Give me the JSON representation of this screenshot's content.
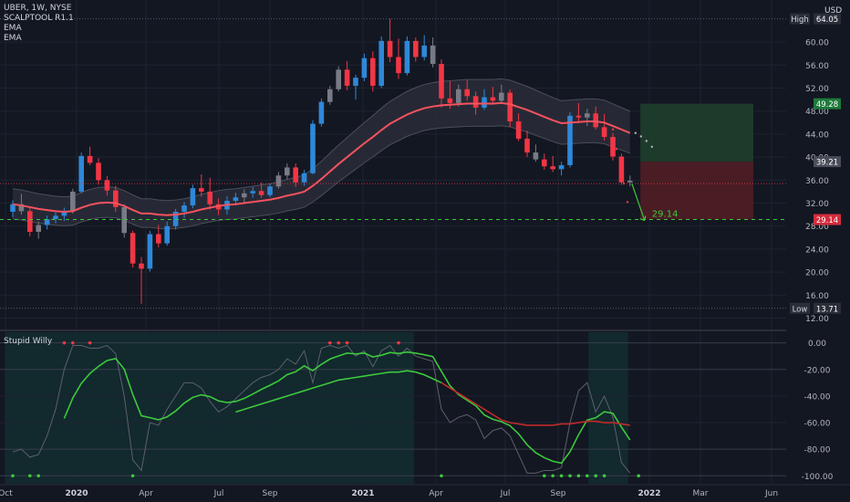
{
  "legend": {
    "symbol": "UBER, 1W, NYSE",
    "line2": "SCALPTOOL R1.1",
    "line3": "EMA",
    "line4": "EMA"
  },
  "currency": "USD",
  "indicator_title": "Stupid Willy",
  "colors": {
    "background": "#131722",
    "up": "#2f88d8",
    "down": "#f23645",
    "neutral": "#787b86",
    "ema": "#f6525f",
    "band": "#3a3d48",
    "willy_fast": "#3cc93c",
    "willy_slow": "#c22a2a",
    "target_green": "#1d3b2a",
    "stop_red": "#4a1c24"
  },
  "chart_data": [
    {
      "type": "candlestick",
      "name": "UBER weekly",
      "x_tick_labels": [
        "Oct",
        "2020",
        "Apr",
        "Jul",
        "Sep",
        "2021",
        "Apr",
        "Jul",
        "Sep",
        "2022",
        "Mar",
        "Jun"
      ],
      "y_ticks": [
        12,
        16,
        20,
        24,
        28,
        32,
        36,
        40,
        44,
        48,
        52,
        56,
        60
      ],
      "y_tick_labels": [
        "12.00",
        "16.00",
        "20.00",
        "24.00",
        "28.00",
        "32.00",
        "36.00",
        "40.00",
        "44.00",
        "48.00",
        "52.00",
        "56.00",
        "60.00"
      ],
      "ylim": [
        10.5,
        67
      ],
      "ohlc": [
        [
          30.5,
          32.5,
          29.5,
          31.8
        ],
        [
          31.8,
          33.6,
          30.0,
          30.6
        ],
        [
          30.6,
          31.4,
          26.2,
          27.0
        ],
        [
          27.0,
          28.8,
          25.8,
          28.2
        ],
        [
          28.2,
          29.8,
          27.4,
          29.2
        ],
        [
          29.2,
          30.4,
          28.5,
          29.8
        ],
        [
          29.8,
          31.2,
          28.9,
          30.6
        ],
        [
          30.6,
          34.5,
          30.2,
          34.0
        ],
        [
          34.0,
          40.8,
          33.7,
          40.2
        ],
        [
          40.2,
          41.8,
          38.6,
          39.0
        ],
        [
          39.0,
          39.8,
          35.2,
          36.0
        ],
        [
          36.0,
          36.7,
          33.3,
          34.2
        ],
        [
          34.2,
          35.0,
          30.5,
          31.3
        ],
        [
          31.3,
          31.8,
          26.0,
          26.8
        ],
        [
          26.8,
          27.2,
          20.8,
          21.5
        ],
        [
          21.5,
          22.6,
          14.5,
          20.6
        ],
        [
          20.6,
          27.2,
          20.1,
          26.6
        ],
        [
          26.6,
          28.2,
          24.3,
          25.0
        ],
        [
          25.0,
          28.8,
          24.6,
          28.0
        ],
        [
          28.0,
          31.0,
          27.4,
          30.5
        ],
        [
          30.5,
          32.2,
          29.4,
          31.6
        ],
        [
          31.6,
          35.2,
          31.1,
          34.6
        ],
        [
          34.6,
          37.0,
          33.1,
          34.0
        ],
        [
          34.0,
          36.4,
          30.9,
          31.8
        ],
        [
          31.8,
          32.8,
          29.9,
          30.9
        ],
        [
          30.9,
          33.2,
          30.0,
          32.4
        ],
        [
          32.4,
          33.8,
          31.6,
          33.0
        ],
        [
          33.0,
          34.4,
          32.1,
          33.7
        ],
        [
          33.7,
          34.8,
          32.9,
          34.1
        ],
        [
          34.1,
          35.6,
          32.9,
          33.4
        ],
        [
          33.4,
          35.4,
          33.0,
          34.9
        ],
        [
          34.9,
          37.4,
          34.5,
          36.8
        ],
        [
          36.8,
          38.9,
          36.1,
          38.2
        ],
        [
          38.2,
          38.9,
          34.8,
          35.6
        ],
        [
          35.6,
          37.8,
          35.0,
          37.2
        ],
        [
          37.2,
          46.4,
          37.0,
          45.8
        ],
        [
          45.8,
          50.2,
          45.3,
          49.6
        ],
        [
          49.6,
          52.4,
          49.1,
          51.8
        ],
        [
          51.8,
          55.8,
          51.4,
          55.2
        ],
        [
          55.2,
          56.7,
          51.6,
          52.4
        ],
        [
          52.4,
          54.3,
          50.0,
          53.8
        ],
        [
          53.8,
          58.0,
          53.2,
          57.2
        ],
        [
          57.2,
          58.4,
          51.4,
          52.4
        ],
        [
          52.4,
          61.0,
          52.0,
          60.2
        ],
        [
          60.2,
          64.05,
          56.5,
          57.4
        ],
        [
          57.4,
          60.6,
          53.6,
          54.6
        ],
        [
          54.6,
          61.0,
          54.2,
          60.2
        ],
        [
          60.2,
          60.8,
          56.6,
          57.4
        ],
        [
          57.4,
          61.2,
          56.8,
          59.4
        ],
        [
          59.4,
          60.8,
          55.6,
          56.2
        ],
        [
          56.2,
          57.0,
          48.6,
          50.2
        ],
        [
          50.2,
          53.2,
          48.4,
          49.4
        ],
        [
          49.4,
          52.6,
          48.8,
          51.8
        ],
        [
          51.8,
          53.4,
          49.8,
          50.6
        ],
        [
          50.6,
          51.4,
          47.4,
          48.6
        ],
        [
          48.6,
          51.8,
          48.2,
          50.4
        ],
        [
          50.4,
          52.2,
          49.1,
          49.8
        ],
        [
          49.8,
          52.6,
          49.4,
          51.2
        ],
        [
          51.2,
          51.8,
          45.2,
          46.2
        ],
        [
          46.2,
          47.6,
          42.8,
          43.2
        ],
        [
          43.2,
          44.6,
          40.0,
          40.8
        ],
        [
          40.8,
          42.2,
          39.2,
          39.6
        ],
        [
          39.6,
          40.6,
          37.8,
          38.4
        ],
        [
          38.4,
          40.2,
          37.4,
          37.9
        ],
        [
          37.9,
          39.2,
          36.8,
          38.6
        ],
        [
          38.6,
          47.8,
          38.2,
          47.2
        ],
        [
          47.2,
          49.4,
          45.9,
          46.9
        ],
        [
          46.9,
          48.4,
          45.4,
          47.6
        ],
        [
          47.6,
          48.8,
          44.8,
          45.2
        ],
        [
          45.2,
          47.5,
          42.9,
          43.5
        ],
        [
          43.5,
          44.2,
          39.4,
          40.1
        ],
        [
          40.1,
          40.6,
          35.2,
          35.6
        ],
        [
          35.6,
          36.8,
          34.9,
          35.9
        ]
      ],
      "ema": [
        31.8,
        31.6,
        31.3,
        31.0,
        30.8,
        30.6,
        30.5,
        30.6,
        31.2,
        31.7,
        32.0,
        32.1,
        32.0,
        31.5,
        30.8,
        30.2,
        30.2,
        30.0,
        29.9,
        30.0,
        30.2,
        30.5,
        30.9,
        31.2,
        31.5,
        31.7,
        31.8,
        32.0,
        32.2,
        32.4,
        32.6,
        32.9,
        33.3,
        33.6,
        34.0,
        35.0,
        36.2,
        37.5,
        38.8,
        40.0,
        41.2,
        42.4,
        43.5,
        44.7,
        45.8,
        46.6,
        47.4,
        48.0,
        48.5,
        48.8,
        49.0,
        49.1,
        49.2,
        49.3,
        49.3,
        49.3,
        49.3,
        49.4,
        49.2,
        48.7,
        48.2,
        47.6,
        47.0,
        46.4,
        45.9,
        46.0,
        46.1,
        46.2,
        46.2,
        46.0,
        45.4,
        44.8,
        44.2
      ],
      "ema_projection": [
        44.2,
        43.6,
        42.8,
        41.8
      ],
      "trade": {
        "entry": 35.4,
        "target": 29.14,
        "stop": 39.21
      },
      "path_projection": [
        44.8,
        41.4,
        38.2,
        35.4,
        32.2
      ],
      "price_labels": [
        {
          "label": "High",
          "value": "64.05"
        },
        {
          "label": "",
          "value": "49.28"
        },
        {
          "label": "",
          "value": "39.21"
        },
        {
          "label": "",
          "value": "29.14"
        },
        {
          "label": "Low",
          "value": "13.71"
        }
      ],
      "target_label": "29.14",
      "high": 64.05,
      "low": 13.71
    },
    {
      "type": "line",
      "name": "Stupid Willy",
      "y_ticks": [
        0,
        -20,
        -40,
        -60,
        -80,
        -100
      ],
      "y_tick_labels": [
        "0.00",
        "-20.00",
        "-40.00",
        "-60.00",
        "-80.00",
        "-100.00"
      ],
      "ylim": [
        -106,
        8
      ],
      "series": [
        {
          "values": [
            -82,
            -80,
            -86,
            -84,
            -70,
            -50,
            -20,
            -2,
            -2,
            -4,
            -4,
            -2,
            -8,
            -40,
            -88,
            -96,
            -60,
            -62,
            -50,
            -40,
            -30,
            -30,
            -34,
            -44,
            -52,
            -48,
            -42,
            -36,
            -30,
            -26,
            -24,
            -20,
            -12,
            -16,
            -6,
            -30,
            -4,
            -2,
            -4,
            -2,
            -10,
            -6,
            -18,
            -6,
            -2,
            -10,
            -4,
            -10,
            -12,
            -14,
            -50,
            -60,
            -56,
            -54,
            -58,
            -72,
            -66,
            -64,
            -70,
            -84,
            -98,
            -98,
            -96,
            -96,
            -94,
            -60,
            -36,
            -30,
            -52,
            -40,
            -56,
            -90,
            -98
          ]
        },
        {
          "values": [
            null,
            null,
            null,
            null,
            null,
            null,
            null,
            null,
            null,
            null,
            null,
            null,
            null,
            null,
            null,
            null,
            null,
            null,
            null,
            null,
            null,
            null,
            null,
            null,
            null,
            null,
            -52,
            -50,
            -48,
            -46,
            -44,
            -42,
            -40,
            -38,
            -36,
            -34,
            -32,
            -30,
            -28,
            -27,
            -26,
            -25,
            -24,
            -23,
            -22,
            -22,
            -21,
            -22,
            -24,
            -27,
            -30,
            -34,
            -38,
            -42,
            -46,
            -50,
            -54,
            -58,
            -60,
            -61,
            -62,
            -62,
            -62,
            -62,
            -61,
            -61,
            -60,
            -59,
            -59,
            -60,
            -60,
            -61,
            -62
          ]
        },
        {
          "values": [
            null,
            null,
            null,
            null,
            null,
            null,
            null,
            null,
            null,
            null,
            null,
            null,
            null,
            null,
            null,
            null,
            null,
            null,
            null,
            null,
            null,
            null,
            null,
            null,
            null,
            null,
            null,
            null,
            null,
            null,
            null,
            null,
            null,
            null,
            null,
            null,
            null,
            null,
            null,
            null,
            null,
            null,
            null,
            null,
            null,
            null,
            null,
            null,
            null,
            null,
            null,
            null,
            null,
            null,
            null,
            null,
            null,
            null,
            null,
            null,
            null,
            null,
            null,
            null,
            null,
            null,
            null,
            null,
            null,
            null,
            null,
            null,
            null
          ]
        }
      ],
      "red_markers_at": [
        6,
        7,
        9,
        37,
        38,
        39,
        45
      ],
      "green_markers_at": [
        0,
        2,
        3,
        14,
        50,
        62,
        63,
        64,
        65,
        66,
        67,
        68,
        69,
        73
      ],
      "shaded_ranges": [
        [
          0,
          47
        ],
        [
          68,
          72
        ]
      ]
    }
  ]
}
